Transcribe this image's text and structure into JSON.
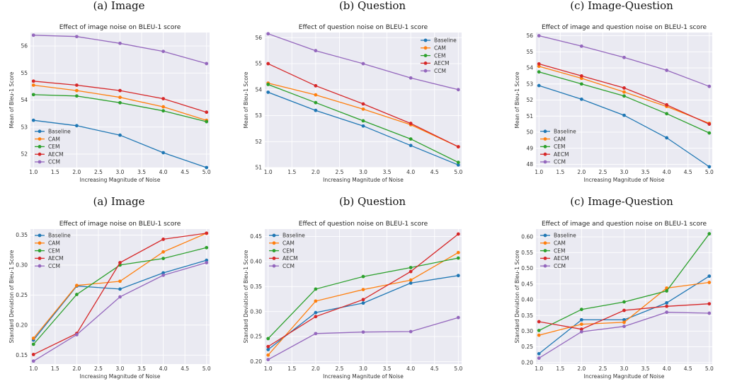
{
  "captions_top": [
    "(a) Image",
    "(b) Question",
    "(c) Image-Question"
  ],
  "captions_middle": [
    "(a) Image",
    "(b) Question",
    "(c) Image-Question"
  ],
  "series_colors": {
    "Baseline": "#1f77b4",
    "CAM": "#ff7f0e",
    "CEM": "#2ca02c",
    "AECM": "#d62728",
    "CCM": "#9467bd"
  },
  "chart_data": [
    {
      "type": "line",
      "title": "Effect of image noise on BLEU-1 score",
      "xlabel": "Increasing Magnitude of Noise",
      "ylabel": "Mean of Bleu-1 Score",
      "xlim": [
        0.93,
        5.07
      ],
      "ylim": [
        51.5,
        56.5
      ],
      "xticks": [
        1.0,
        1.5,
        2.0,
        2.5,
        3.0,
        3.5,
        4.0,
        4.5,
        5.0
      ],
      "xtick_labels": [
        "1.0",
        "1.5",
        "2.0",
        "2.5",
        "3.0",
        "3.5",
        "4.0",
        "4.5",
        "5.0"
      ],
      "yticks": [
        52,
        53,
        54,
        55,
        56
      ],
      "ytick_labels": [
        "52",
        "53",
        "54",
        "55",
        "56"
      ],
      "grid": true,
      "legend": "bottom-left",
      "x": [
        1,
        2,
        3,
        4,
        5
      ],
      "series": [
        {
          "name": "Baseline",
          "values": [
            53.25,
            53.05,
            52.7,
            52.05,
            51.5
          ]
        },
        {
          "name": "CAM",
          "values": [
            54.55,
            54.35,
            54.1,
            53.75,
            53.25
          ]
        },
        {
          "name": "CEM",
          "values": [
            54.2,
            54.15,
            53.9,
            53.6,
            53.2
          ]
        },
        {
          "name": "AECM",
          "values": [
            54.7,
            54.55,
            54.35,
            54.05,
            53.55
          ]
        },
        {
          "name": "CCM",
          "values": [
            56.4,
            56.35,
            56.1,
            55.8,
            55.35
          ]
        }
      ]
    },
    {
      "type": "line",
      "title": "Effect of question noise on BLEU-1 score",
      "xlabel": "Increasing Magnitude of Noise",
      "ylabel": "Mean of Bleu-1 Score",
      "xlim": [
        0.93,
        5.07
      ],
      "ylim": [
        51.0,
        56.2
      ],
      "xticks": [
        1.0,
        1.5,
        2.0,
        2.5,
        3.0,
        3.5,
        4.0,
        4.5,
        5.0
      ],
      "xtick_labels": [
        "1.0",
        "1.5",
        "2.0",
        "2.5",
        "3.0",
        "3.5",
        "4.0",
        "4.5",
        "5.0"
      ],
      "yticks": [
        51,
        52,
        53,
        54,
        55,
        56
      ],
      "ytick_labels": [
        "51",
        "52",
        "53",
        "54",
        "55",
        "56"
      ],
      "grid": true,
      "legend": "top-right",
      "x": [
        1,
        2,
        3,
        4,
        5
      ],
      "series": [
        {
          "name": "Baseline",
          "values": [
            53.9,
            53.2,
            52.6,
            51.85,
            51.1
          ]
        },
        {
          "name": "CAM",
          "values": [
            54.25,
            53.8,
            53.25,
            52.65,
            51.8
          ]
        },
        {
          "name": "CEM",
          "values": [
            54.2,
            53.5,
            52.8,
            52.1,
            51.2
          ]
        },
        {
          "name": "AECM",
          "values": [
            55.0,
            54.15,
            53.45,
            52.7,
            51.8
          ]
        },
        {
          "name": "CCM",
          "values": [
            56.15,
            55.5,
            55.0,
            54.45,
            54.0
          ]
        }
      ]
    },
    {
      "type": "line",
      "title": "Effect of image and question noise on BLEU-1 score",
      "xlabel": "Increasing Magnitude of Noise",
      "ylabel": "Mean of Bleu-1 Score",
      "xlim": [
        0.93,
        5.07
      ],
      "ylim": [
        47.8,
        56.2
      ],
      "xticks": [
        1.0,
        1.5,
        2.0,
        2.5,
        3.0,
        3.5,
        4.0,
        4.5,
        5.0
      ],
      "xtick_labels": [
        "1.0",
        "1.5",
        "2.0",
        "2.5",
        "3.0",
        "3.5",
        "4.0",
        "4.5",
        "5.0"
      ],
      "yticks": [
        48,
        49,
        50,
        51,
        52,
        53,
        54,
        55,
        56
      ],
      "ytick_labels": [
        "48",
        "49",
        "50",
        "51",
        "52",
        "53",
        "54",
        "55",
        "56"
      ],
      "grid": true,
      "legend": "bottom-left",
      "x": [
        1,
        2,
        3,
        4,
        5
      ],
      "series": [
        {
          "name": "Baseline",
          "values": [
            52.9,
            52.05,
            51.05,
            49.65,
            47.85
          ]
        },
        {
          "name": "CAM",
          "values": [
            54.1,
            53.35,
            52.5,
            51.6,
            50.55
          ]
        },
        {
          "name": "CEM",
          "values": [
            53.75,
            53.0,
            52.25,
            51.15,
            49.95
          ]
        },
        {
          "name": "AECM",
          "values": [
            54.25,
            53.5,
            52.75,
            51.7,
            50.5
          ]
        },
        {
          "name": "CCM",
          "values": [
            56.0,
            55.35,
            54.65,
            53.85,
            52.85
          ]
        }
      ]
    },
    {
      "type": "line",
      "title": "Effect of image noise on BLEU-1 score",
      "xlabel": "Increasing Magnitude of Noise",
      "ylabel": "Standard Deviation of Bleu-1 Score",
      "xlim": [
        0.93,
        5.07
      ],
      "ylim": [
        0.135,
        0.36
      ],
      "xticks": [
        1.0,
        1.5,
        2.0,
        2.5,
        3.0,
        3.5,
        4.0,
        4.5,
        5.0
      ],
      "xtick_labels": [
        "1.0",
        "1.5",
        "2.0",
        "2.5",
        "3.0",
        "3.5",
        "4.0",
        "4.5",
        "5.0"
      ],
      "yticks": [
        0.15,
        0.2,
        0.25,
        0.3,
        0.35
      ],
      "ytick_labels": [
        "0.15",
        "0.20",
        "0.25",
        "0.30",
        "0.35"
      ],
      "grid": true,
      "legend": "top-left",
      "x": [
        1,
        2,
        3,
        4,
        5
      ],
      "series": [
        {
          "name": "Baseline",
          "values": [
            0.175,
            0.265,
            0.26,
            0.287,
            0.308
          ]
        },
        {
          "name": "CAM",
          "values": [
            0.178,
            0.266,
            0.273,
            0.322,
            0.353
          ]
        },
        {
          "name": "CEM",
          "values": [
            0.168,
            0.251,
            0.3,
            0.311,
            0.329
          ]
        },
        {
          "name": "AECM",
          "values": [
            0.151,
            0.186,
            0.304,
            0.343,
            0.353
          ]
        },
        {
          "name": "CCM",
          "values": [
            0.14,
            0.184,
            0.247,
            0.283,
            0.304
          ]
        }
      ]
    },
    {
      "type": "line",
      "title": "Effect of question noise on BLEU-1 score",
      "xlabel": "Increasing Magnitude of Noise",
      "ylabel": "Standard Deviation of Bleu-1 Score",
      "xlim": [
        0.93,
        5.07
      ],
      "ylim": [
        0.195,
        0.465
      ],
      "xticks": [
        1.0,
        1.5,
        2.0,
        2.5,
        3.0,
        3.5,
        4.0,
        4.5,
        5.0
      ],
      "xtick_labels": [
        "1.0",
        "1.5",
        "2.0",
        "2.5",
        "3.0",
        "3.5",
        "4.0",
        "4.5",
        "5.0"
      ],
      "yticks": [
        0.2,
        0.25,
        0.3,
        0.35,
        0.4,
        0.45
      ],
      "ytick_labels": [
        "0.20",
        "0.25",
        "0.30",
        "0.35",
        "0.40",
        "0.45"
      ],
      "grid": true,
      "legend": "top-left",
      "x": [
        1,
        2,
        3,
        4,
        5
      ],
      "series": [
        {
          "name": "Baseline",
          "values": [
            0.224,
            0.298,
            0.317,
            0.357,
            0.372
          ]
        },
        {
          "name": "CAM",
          "values": [
            0.213,
            0.321,
            0.344,
            0.363,
            0.418
          ]
        },
        {
          "name": "CEM",
          "values": [
            0.246,
            0.345,
            0.37,
            0.388,
            0.407
          ]
        },
        {
          "name": "AECM",
          "values": [
            0.23,
            0.29,
            0.324,
            0.38,
            0.455
          ]
        },
        {
          "name": "CCM",
          "values": [
            0.204,
            0.256,
            0.259,
            0.26,
            0.288
          ]
        }
      ]
    },
    {
      "type": "line",
      "title": "Effect of image and question noise on BLEU-1 score",
      "xlabel": "Increasing Magnitude of Noise",
      "ylabel": "Standard Deviation of Bleu-1 Score",
      "xlim": [
        0.93,
        5.07
      ],
      "ylim": [
        0.195,
        0.625
      ],
      "xticks": [
        1.0,
        1.5,
        2.0,
        2.5,
        3.0,
        3.5,
        4.0,
        4.5,
        5.0
      ],
      "xtick_labels": [
        "1.0",
        "1.5",
        "2.0",
        "2.5",
        "3.0",
        "3.5",
        "4.0",
        "4.5",
        "5.0"
      ],
      "yticks": [
        0.2,
        0.25,
        0.3,
        0.35,
        0.4,
        0.45,
        0.5,
        0.55,
        0.6
      ],
      "ytick_labels": [
        "0.20",
        "0.25",
        "0.30",
        "0.35",
        "0.40",
        "0.45",
        "0.50",
        "0.55",
        "0.60"
      ],
      "grid": true,
      "legend": "top-left",
      "x": [
        1,
        2,
        3,
        4,
        5
      ],
      "series": [
        {
          "name": "Baseline",
          "values": [
            0.228,
            0.336,
            0.336,
            0.39,
            0.475
          ]
        },
        {
          "name": "CAM",
          "values": [
            0.287,
            0.322,
            0.328,
            0.437,
            0.455
          ]
        },
        {
          "name": "CEM",
          "values": [
            0.302,
            0.369,
            0.393,
            0.428,
            0.61
          ]
        },
        {
          "name": "AECM",
          "values": [
            0.33,
            0.306,
            0.366,
            0.379,
            0.387
          ]
        },
        {
          "name": "CCM",
          "values": [
            0.214,
            0.298,
            0.315,
            0.36,
            0.357
          ]
        }
      ]
    }
  ]
}
